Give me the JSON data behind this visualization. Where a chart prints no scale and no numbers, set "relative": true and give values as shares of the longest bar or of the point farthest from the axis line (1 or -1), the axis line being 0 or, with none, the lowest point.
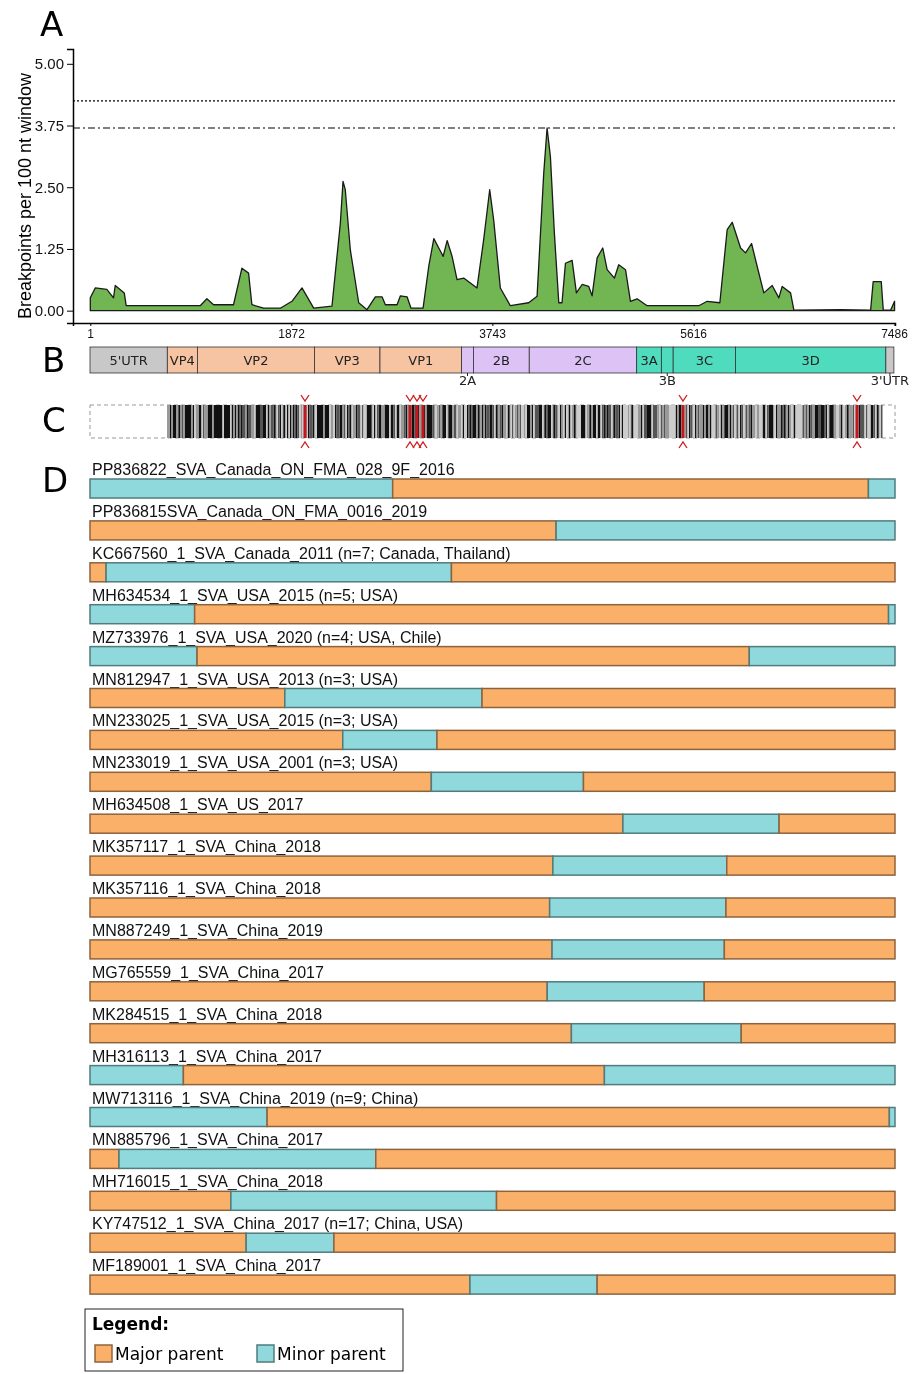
{
  "chart_data": [
    {
      "type": "area",
      "title": "A",
      "ylabel": "Breakpoints per 100 nt window",
      "xlim": [
        -160,
        7490
      ],
      "ylim": [
        -0.25,
        5.3
      ],
      "tick_labels": "y",
      "xticks": [
        1,
        1872,
        3743,
        5616,
        7486
      ],
      "yticks": [
        {
          "value": 0,
          "label": "0.00"
        },
        {
          "value": 1.25,
          "label": "1.25"
        },
        {
          "value": 2.5,
          "label": "2.50"
        },
        {
          "value": 3.75,
          "label": "3.75"
        },
        {
          "value": 5,
          "label": "5.00"
        }
      ],
      "ref_lines": [
        {
          "axis": "y",
          "value": 4.25,
          "line_style": "dotted"
        },
        {
          "axis": "y",
          "value": 3.7,
          "line_style": "dashed"
        }
      ],
      "x": [
        1,
        47,
        155,
        217,
        233,
        317,
        335,
        1024,
        1086,
        1148,
        1334,
        1412,
        1474,
        1505,
        1614,
        1769,
        1878,
        1971,
        2080,
        2250,
        2281,
        2328,
        2353,
        2374,
        2421,
        2499,
        2576,
        2654,
        2716,
        2747,
        2856,
        2887,
        2949,
        2986,
        3098,
        3151,
        3198,
        3244,
        3285,
        3322,
        3368,
        3414,
        3476,
        3600,
        3662,
        3718,
        3755,
        3817,
        3910,
        4081,
        4159,
        4221,
        4252,
        4283,
        4320,
        4361,
        4391,
        4423,
        4485,
        4525,
        4578,
        4640,
        4671,
        4718,
        4770,
        4811,
        4879,
        4919,
        4982,
        5028,
        5090,
        5183,
        5664,
        5742,
        5860,
        5928,
        5975,
        6053,
        6099,
        6155,
        6207,
        6269,
        6347,
        6409,
        6440,
        6518,
        6549,
        6984,
        7263,
        7287,
        7362,
        7381,
        7449,
        7486
      ],
      "series": [
        {
          "color": "#72b553",
          "values": [
            0.26,
            0.46,
            0.43,
            0.26,
            0.51,
            0.36,
            0.1,
            0.1,
            0.24,
            0.12,
            0.12,
            0.86,
            0.76,
            0.12,
            0.05,
            0.05,
            0.19,
            0.46,
            0.05,
            0.09,
            0.76,
            1.77,
            2.62,
            2.45,
            1.23,
            0.16,
            0.02,
            0.28,
            0.28,
            0.12,
            0.12,
            0.3,
            0.28,
            0.05,
            0.05,
            0.9,
            1.46,
            1.27,
            1.1,
            1.42,
            1.1,
            0.63,
            0.66,
            0.46,
            1.44,
            2.45,
            1.84,
            0.46,
            0.1,
            0.16,
            0.29,
            2.79,
            3.7,
            3.12,
            1.57,
            0.16,
            0.16,
            0.96,
            1.02,
            0.36,
            0.53,
            0.49,
            0.3,
            1.07,
            1.27,
            0.83,
            0.66,
            0.93,
            0.83,
            0.19,
            0.24,
            0.1,
            0.1,
            0.19,
            0.16,
            1.64,
            1.79,
            1.27,
            1.17,
            1.36,
            0.9,
            0.36,
            0.51,
            0.26,
            0.49,
            0.36,
            0.01,
            0.02,
            0.01,
            0.59,
            0.59,
            0.01,
            0.01,
            0.19
          ]
        }
      ]
    },
    {
      "type": "bar",
      "title": "B",
      "orientation": "horizontal",
      "stacked": true,
      "xlim": [
        0,
        7486
      ],
      "xticks": [
        1,
        1872,
        3743,
        5616,
        7486
      ],
      "categories": [
        null
      ],
      "series": [
        {
          "name": "5'UTR",
          "color": "#c8c8c8",
          "values": [
            720
          ]
        },
        {
          "name": "VP4",
          "color": "#f6c4a2",
          "values": [
            280
          ]
        },
        {
          "name": "VP2",
          "color": "#f6c4a2",
          "values": [
            1090
          ]
        },
        {
          "name": "VP3",
          "color": "#f6c4a2",
          "values": [
            610
          ]
        },
        {
          "name": "VP1",
          "color": "#f6c4a2",
          "values": [
            760
          ]
        },
        {
          "name": "2A",
          "color": "#dcc2f5",
          "values": [
            110
          ]
        },
        {
          "name": "2B",
          "color": "#dcc2f5",
          "values": [
            520
          ]
        },
        {
          "name": "2C",
          "color": "#dcc2f5",
          "values": [
            1000
          ]
        },
        {
          "name": "3A",
          "color": "#4fdcbe",
          "values": [
            230
          ]
        },
        {
          "name": "3B",
          "color": "#4fdcbe",
          "values": [
            110
          ]
        },
        {
          "name": "3C",
          "color": "#4fdcbe",
          "values": [
            580
          ]
        },
        {
          "name": "3D",
          "color": "#4fdcbe",
          "values": [
            1400
          ]
        },
        {
          "name": "3'UTR",
          "color": "#c8c8c8",
          "values": [
            75
          ]
        }
      ]
    },
    {
      "type": "other",
      "title": "C"
    },
    {
      "type": "bar",
      "title": "D",
      "orientation": "horizontal",
      "stacked": true,
      "relative": true,
      "legend": "bottom left",
      "legend_title": "Legend:",
      "categories": [
        "PP836822_SVA_Canada_ON_FMA_028_9F_2016",
        "PP836815SVA_Canada_ON_FMA_0016_2019",
        "KC667560_1_SVA_Canada_2011 (n=7; Canada, Thailand)",
        "MH634534_1_SVA_USA_2015 (n=5; USA)",
        "MZ733976_1_SVA_USA_2020 (n=4; USA, Chile)",
        "MN812947_1_SVA_USA_2013 (n=3; USA)",
        "MN233025_1_SVA_USA_2015 (n=3; USA)",
        "MN233019_1_SVA_USA_2001 (n=3; USA)",
        "MH634508_1_SVA_US_2017",
        "MK357117_1_SVA_China_2018",
        "MK357116_1_SVA_China_2018",
        "MN887249_1_SVA_China_2019",
        "MG765559_1_SVA_China_2017",
        "MK284515_1_SVA_China_2018",
        "MH316113_1_SVA_China_2017",
        "MW713116_1_SVA_China_2019 (n=9; China)",
        "MN885796_1_SVA_China_2017",
        "MH716015_1_SVA_China_2018",
        "KY747512_1_SVA_China_2017 (n=17; China, USA)",
        "MF189001_1_SVA_China_2017"
      ],
      "series": [
        {
          "name": "Minor parent",
          "color": "#8fd9dc",
          "values": [
            0.376,
            0,
            0,
            0.13,
            0.133,
            0,
            0,
            0,
            0,
            0,
            0,
            0,
            0,
            0,
            0.116,
            0.22,
            0,
            0,
            0,
            0
          ]
        },
        {
          "name": "Major parent",
          "color": "#fbb06a",
          "values": [
            0.591,
            0.579,
            0.02,
            0.862,
            0.686,
            0.242,
            0.314,
            0.424,
            0.662,
            0.575,
            0.571,
            0.574,
            0.568,
            0.598,
            0.523,
            0.773,
            0.036,
            0.175,
            0.194,
            0.472
          ]
        },
        {
          "color": "#8fd9dc",
          "values": [
            0.033,
            0.421,
            0.429,
            0.008,
            0.181,
            0.245,
            0.117,
            0.189,
            0.194,
            0.216,
            0.219,
            0.214,
            0.195,
            0.211,
            0.361,
            0.007,
            0.319,
            0.33,
            0.109,
            0.158
          ]
        },
        {
          "color": "#fbb06a",
          "values": [
            0,
            0,
            0.551,
            0,
            0,
            0.513,
            0.569,
            0.387,
            0.144,
            0.209,
            0.21,
            0.212,
            0.237,
            0.191,
            0,
            0,
            0.645,
            0.495,
            0.697,
            0.37
          ]
        }
      ]
    }
  ]
}
